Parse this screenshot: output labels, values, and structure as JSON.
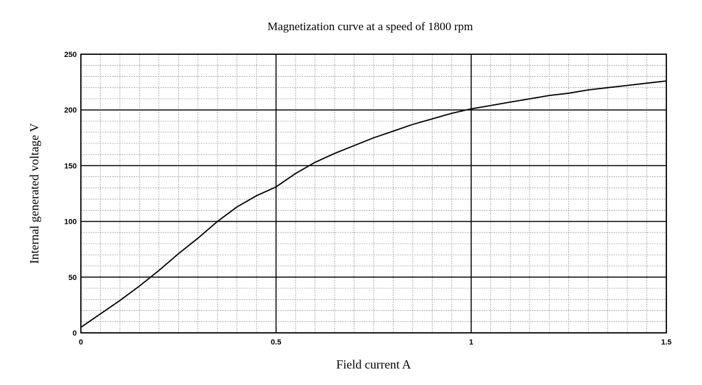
{
  "chart_data": {
    "type": "line",
    "title": "Magnetization curve at a speed of 1800 rpm",
    "xlabel": "Field current  A",
    "ylabel": "Internal generated voltage  V",
    "xlim": [
      0,
      1.5
    ],
    "ylim": [
      0,
      250
    ],
    "grid": true,
    "xticks": [
      0,
      0.5,
      1,
      1.5
    ],
    "xtick_labels": [
      "0",
      "0.5",
      "1",
      "1.5"
    ],
    "yticks": [
      0,
      50,
      100,
      150,
      200,
      250
    ],
    "ytick_labels": [
      "0",
      "50",
      "100",
      "150",
      "200",
      "250"
    ],
    "minor_x_step": 0.05,
    "minor_y_step": 10,
    "series": [
      {
        "x": [
          0,
          0.05,
          0.1,
          0.15,
          0.2,
          0.25,
          0.3,
          0.35,
          0.4,
          0.45,
          0.5,
          0.55,
          0.6,
          0.65,
          0.7,
          0.75,
          0.8,
          0.85,
          0.9,
          0.95,
          1.0,
          1.05,
          1.1,
          1.15,
          1.2,
          1.25,
          1.3,
          1.35,
          1.4,
          1.45,
          1.5
        ],
        "y": [
          5,
          17,
          29,
          42,
          56,
          71,
          85,
          100,
          113,
          123,
          131,
          143,
          153,
          161,
          168,
          175,
          181,
          187,
          192,
          197,
          201,
          204,
          207,
          210,
          213,
          215,
          218,
          220,
          222,
          224,
          226
        ]
      }
    ]
  }
}
